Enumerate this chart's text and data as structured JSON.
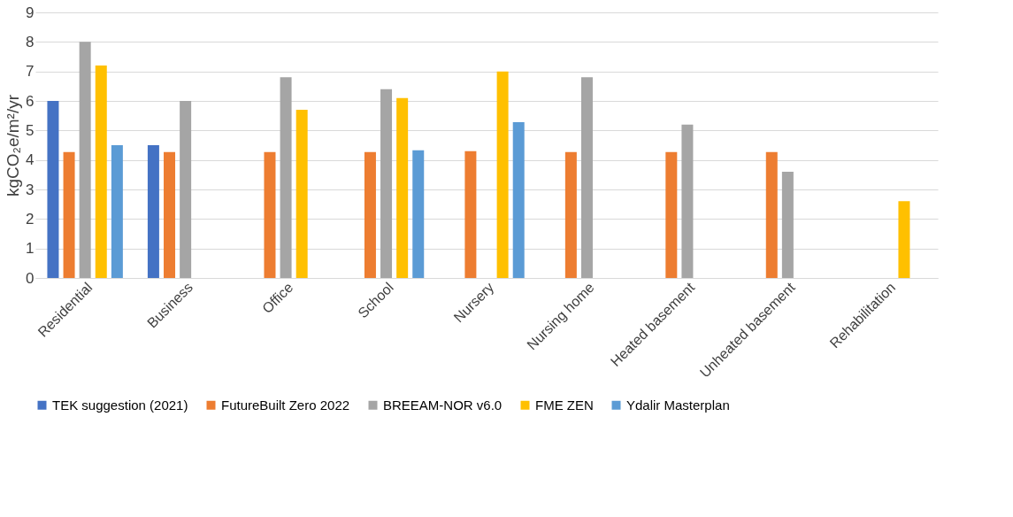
{
  "chart_data": {
    "type": "bar",
    "ylabel": "kgCO₂e/m²/yr",
    "categories": [
      "Residential",
      "Business",
      "Office",
      "School",
      "Nursery",
      "Nursing home",
      "Heated basement",
      "Unheated basement",
      "Rehabilitation"
    ],
    "series": [
      {
        "name": "TEK suggestion (2021)",
        "color": "#4472c4",
        "values": [
          6.0,
          4.5,
          null,
          null,
          null,
          null,
          null,
          null,
          null
        ]
      },
      {
        "name": "FutureBuilt Zero 2022",
        "color": "#ed7d31",
        "values": [
          4.27,
          4.27,
          4.27,
          4.27,
          4.3,
          4.27,
          4.27,
          4.27,
          null
        ]
      },
      {
        "name": "BREEAM-NOR v6.0",
        "color": "#a5a5a5",
        "values": [
          8.0,
          6.0,
          6.8,
          6.4,
          null,
          6.8,
          5.2,
          3.6,
          null
        ]
      },
      {
        "name": "FME ZEN",
        "color": "#ffc000",
        "values": [
          7.2,
          null,
          5.7,
          6.1,
          7.0,
          null,
          null,
          null,
          2.6
        ]
      },
      {
        "name": "Ydalir Masterplan",
        "color": "#5b9bd5",
        "values": [
          4.5,
          null,
          null,
          4.33,
          5.28,
          null,
          null,
          null,
          null
        ]
      }
    ],
    "ylim": [
      0,
      9
    ],
    "yticks": [
      0,
      1,
      2,
      3,
      4,
      5,
      6,
      7,
      8,
      9
    ],
    "grid": "y",
    "legend": "bottom"
  }
}
